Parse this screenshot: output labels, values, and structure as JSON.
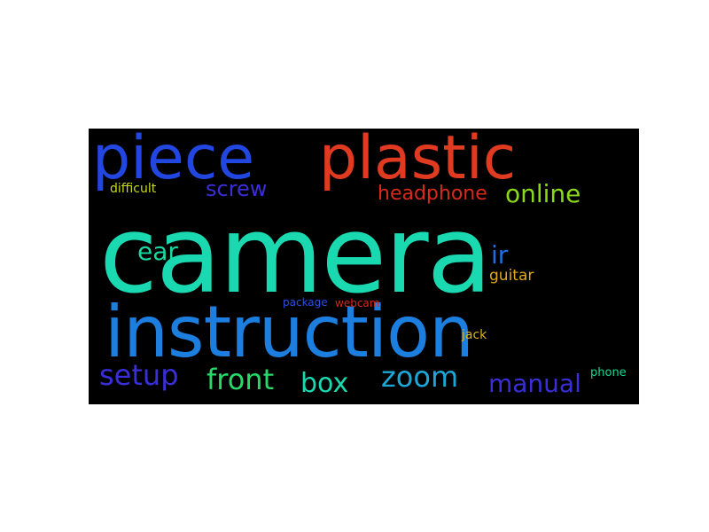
{
  "wordcloud": {
    "background": "#000000",
    "words": [
      {
        "text": "camera",
        "color": "#1ad9b0"
      },
      {
        "text": "instruction",
        "color": "#1c7fe0"
      },
      {
        "text": "piece",
        "color": "#2246e0"
      },
      {
        "text": "plastic",
        "color": "#e03a20"
      },
      {
        "text": "screw",
        "color": "#3a2ed8"
      },
      {
        "text": "difficult",
        "color": "#c8d820"
      },
      {
        "text": "headphone",
        "color": "#d82a18"
      },
      {
        "text": "online",
        "color": "#8ad81a"
      },
      {
        "text": "ear",
        "color": "#1ad9a0"
      },
      {
        "text": "ir",
        "color": "#1c6fe0"
      },
      {
        "text": "guitar",
        "color": "#e0a81a"
      },
      {
        "text": "package",
        "color": "#2a50e0"
      },
      {
        "text": "webcam",
        "color": "#d82818"
      },
      {
        "text": "jack",
        "color": "#e0b01a"
      },
      {
        "text": "setup",
        "color": "#3a2ed8"
      },
      {
        "text": "front",
        "color": "#2ad86a"
      },
      {
        "text": "box",
        "color": "#1ad9b0"
      },
      {
        "text": "zoom",
        "color": "#1aa8d8"
      },
      {
        "text": "manual",
        "color": "#3a2ed8"
      },
      {
        "text": "phone",
        "color": "#1ad890"
      }
    ]
  }
}
